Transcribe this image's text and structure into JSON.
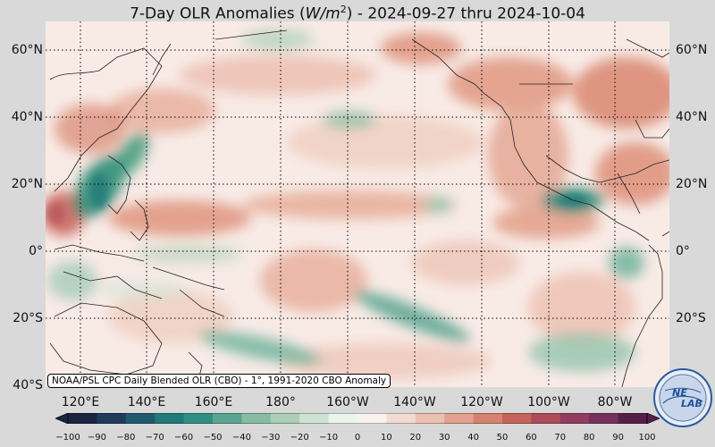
{
  "title": {
    "prefix": "7-Day OLR Anomalies (",
    "unit_base": "W/m",
    "unit_exp": "2",
    "suffix": ") - 2024-09-27 thru 2024-10-04"
  },
  "lat_labels": [
    "60°N",
    "40°N",
    "20°N",
    "0°",
    "20°S",
    "40°S"
  ],
  "lon_labels": [
    "120°E",
    "140°E",
    "160°E",
    "180°",
    "160°W",
    "140°W",
    "120°W",
    "100°W",
    "80°W"
  ],
  "source_note": "NOAA/PSL CPC Daily Blended OLR (CBO) - 1°, 1991-2020 CBO Anomaly",
  "colorbar": {
    "ticks": [
      "−100",
      "−90",
      "−80",
      "−70",
      "−60",
      "−50",
      "−40",
      "−30",
      "−20",
      "−10",
      "0",
      "10",
      "20",
      "30",
      "40",
      "50",
      "60",
      "70",
      "80",
      "90",
      "100"
    ],
    "colors": [
      "#1a2340",
      "#1f3a5a",
      "#215a6e",
      "#1f7a78",
      "#2f8f82",
      "#5aa592",
      "#86bca2",
      "#abcfb6",
      "#cfe3d3",
      "#ecf4ee",
      "#faf2ef",
      "#f3dbd2",
      "#ecc1b3",
      "#e2a18e",
      "#d5826e",
      "#c4645a",
      "#ad4c59",
      "#933c62",
      "#77305e",
      "#561f48"
    ]
  },
  "logo": {
    "text_top": "NE",
    "text_bottom": "LAB"
  },
  "colors": {
    "negative": "#3f9a7c",
    "positive": "#d8866f",
    "background": "#d9d9d9"
  }
}
